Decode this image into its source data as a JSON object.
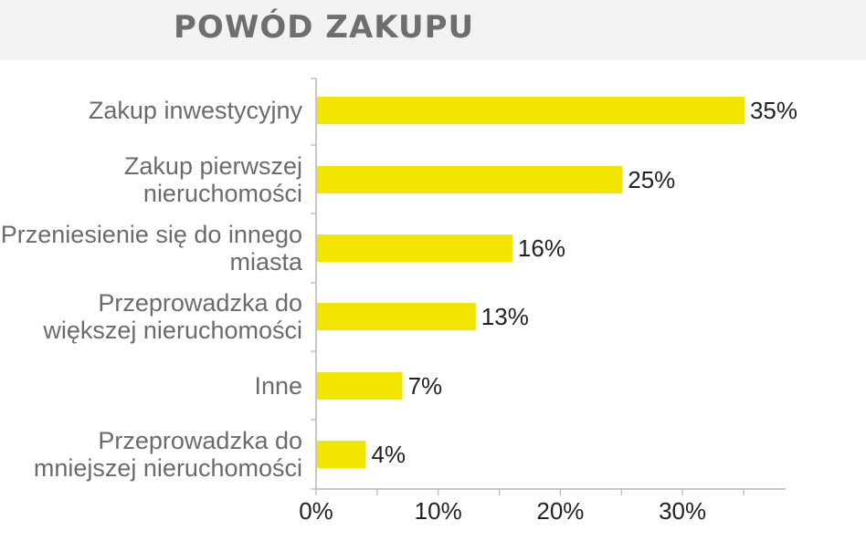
{
  "chart_data": {
    "type": "bar",
    "orientation": "horizontal",
    "title": "POWÓD ZAKUPU",
    "categories": [
      [
        "Zakup inwestycyjny"
      ],
      [
        "Zakup pierwszej",
        "nieruchomości"
      ],
      [
        "Przeniesienie się do innego",
        "miasta"
      ],
      [
        "Przeprowadzka do",
        "większej nieruchomości"
      ],
      [
        "Inne"
      ],
      [
        "Przeprowadzka do",
        "mniejszej nieruchomości"
      ]
    ],
    "values": [
      35,
      25,
      16,
      13,
      7,
      4
    ],
    "value_labels": [
      "35%",
      "25%",
      "16%",
      "13%",
      "7%",
      "4%"
    ],
    "xlim": [
      0,
      38
    ],
    "x_ticks": [
      0,
      10,
      20,
      30
    ],
    "x_tick_labels": [
      "0%",
      "10%",
      "20%",
      "30%"
    ],
    "grid": false,
    "legend": "none",
    "bar_color": "#f2e600",
    "axis_color": "#b5b5b5"
  }
}
